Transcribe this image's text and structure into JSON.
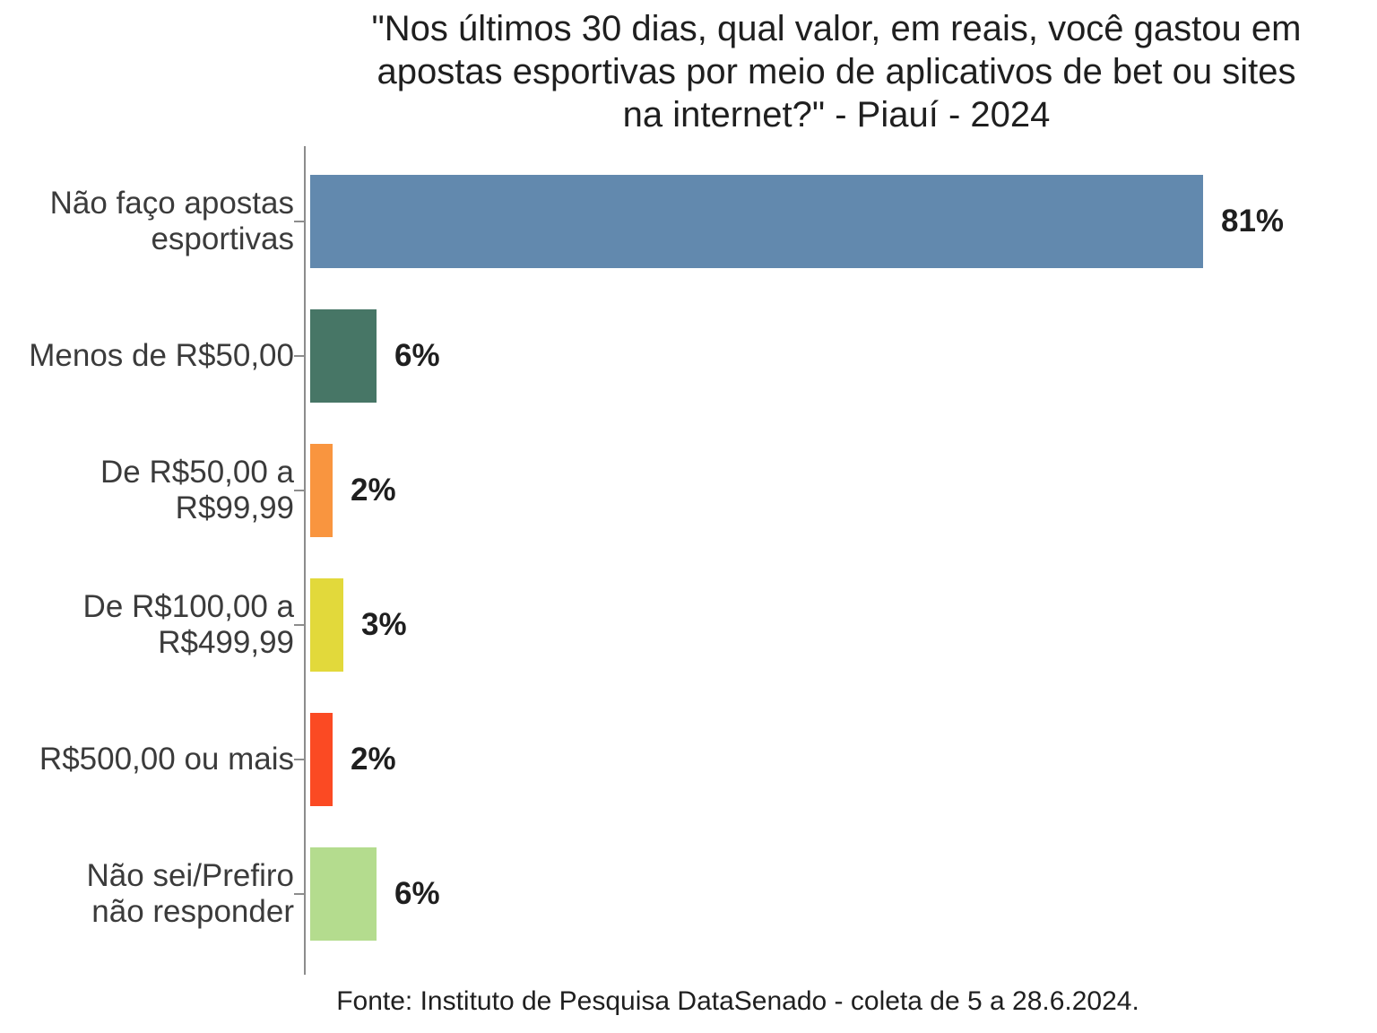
{
  "title": {
    "lines": [
      "\"Nos últimos 30 dias, qual valor, em reais, você gastou em",
      "apostas esportivas por meio de aplicativos de bet ou sites",
      "na internet?\" - Piauí - 2024"
    ]
  },
  "source": "Fonte: Instituto de Pesquisa DataSenado - coleta de 5 a 28.6.2024.",
  "chart_data": {
    "type": "bar",
    "orientation": "horizontal",
    "title": "\"Nos últimos 30 dias, qual valor, em reais, você gastou em apostas esportivas por meio de aplicativos de bet ou sites na internet?\" - Piauí - 2024",
    "categories": [
      "Não faço apostas esportivas",
      "Menos de R$50,00",
      "De R$50,00 a R$99,99",
      "De R$100,00 a R$499,99",
      "R$500,00 ou mais",
      "Não sei/Prefiro não responder"
    ],
    "category_display": [
      "Não faço apostas\nesportivas",
      "Menos de R$50,00",
      "De R$50,00 a\nR$99,99",
      "De R$100,00 a\nR$499,99",
      "R$500,00 ou mais",
      "Não sei/Prefiro\nnão responder"
    ],
    "values": [
      81,
      6,
      2,
      3,
      2,
      6
    ],
    "value_labels": [
      "81%",
      "6%",
      "2%",
      "3%",
      "2%",
      "6%"
    ],
    "bar_colors": [
      "#6289AE",
      "#477666",
      "#F9953F",
      "#E2D93B",
      "#FB4A23",
      "#B4DC8E"
    ],
    "axis_color": "#8c8c8c",
    "xlabel": "",
    "ylabel": "",
    "xlim": [
      0,
      88
    ],
    "grid": false,
    "legend": false,
    "source": "Fonte: Instituto de Pesquisa DataSenado - coleta de 5 a 28.6.2024."
  }
}
